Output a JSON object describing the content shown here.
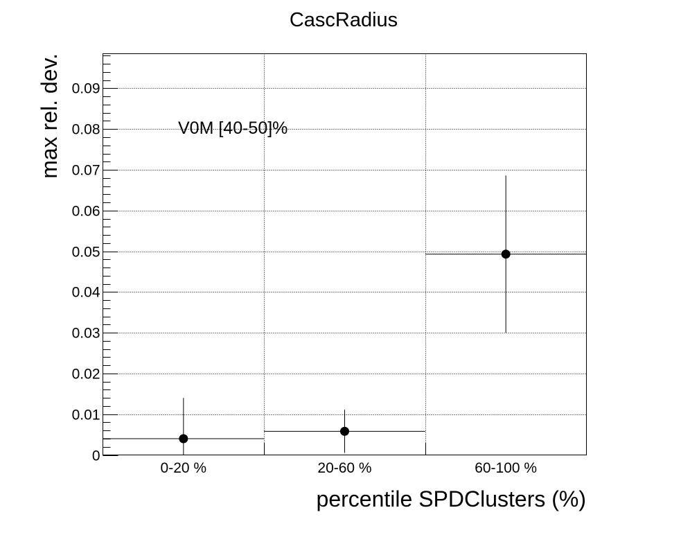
{
  "chart_data": {
    "type": "scatter",
    "title": "CascRadius",
    "xlabel": "percentile SPDClusters (%)",
    "ylabel": "max rel. dev.",
    "annotation": "V0M [40-50]%",
    "categories": [
      "0-20 %",
      "20-60 %",
      "60-100 %"
    ],
    "x_bins": [
      [
        0,
        1
      ],
      [
        1,
        2
      ],
      [
        2,
        3
      ]
    ],
    "values": [
      0.004,
      0.0058,
      0.0493
    ],
    "errors": [
      0.01,
      0.0053,
      0.0193
    ],
    "xlim": [
      0,
      3
    ],
    "ylim": [
      0,
      0.0985
    ],
    "yticks": [
      0,
      0.01,
      0.02,
      0.03,
      0.04,
      0.05,
      0.06,
      0.07,
      0.08,
      0.09
    ],
    "ytick_labels": [
      "0",
      "0.01",
      "0.02",
      "0.03",
      "0.04",
      "0.05",
      "0.06",
      "0.07",
      "0.08",
      "0.09"
    ],
    "grid": true,
    "legend": "none",
    "marker_color": "#000000"
  }
}
